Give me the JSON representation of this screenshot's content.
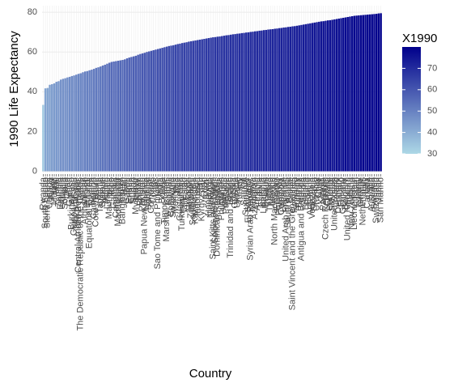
{
  "chart_data": {
    "type": "bar",
    "x_label": "Country",
    "y_label": "1990 Life Expectancy",
    "categories": [
      "Rwanda",
      "South Sudan",
      "Sierra Leone",
      "Uganda",
      "Niger",
      "Malawi",
      "Mali",
      "Zambia",
      "Ethiopia",
      "Angola",
      "Somalia",
      "Chad",
      "Guinea",
      "Burkina Faso",
      "Guinea-Bissau",
      "Mozambique",
      "Central African Republic",
      "The Democratic Republic of the Congo",
      "Liberia",
      "Afghanistan",
      "Burundi",
      "Equatorial Guinea",
      "Nigeria",
      "Cameroon",
      "Cote d'Ivoire",
      "Benin",
      "Tanzania",
      "Djibouti",
      "Yemen",
      "Lesotho",
      "Mauritania",
      "Togo",
      "Gambia",
      "Cambodia",
      "Madagascar",
      "Kenya",
      "Bangladesh",
      "Haiti",
      "Gabon",
      "Eritrea",
      "Ghana",
      "Sudan",
      "Myanmar",
      "Nepal",
      "Bhutan",
      "Pakistan",
      "Papua New Guinea",
      "Namibia",
      "Senegal",
      "Comoros",
      "Congo",
      "Laos",
      "Sao Tome and Principe",
      "India",
      "Bolivia",
      "Timor-Leste",
      "Marshall Islands",
      "Kiribati",
      "Botswana",
      "Swaziland",
      "Mongolia",
      "Iraq",
      "Guatemala",
      "Turkmenistan",
      "Tajikistan",
      "Egypt",
      "Morocco",
      "Zimbabwe",
      "South Africa",
      "Kazakhstan",
      "Indonesia",
      "Peru",
      "Kyrgyzstan",
      "Iran",
      "Brazil",
      "Honduras",
      "Nicaragua",
      "Saint Kitts and Nevis",
      "Solomon Islands",
      "Dominican Republic",
      "Algeria",
      "Philippines",
      "Vanuatu",
      "Palestine",
      "Belize",
      "Trinidad and Tobago",
      "Russia",
      "Guyana",
      "Ukraine",
      "Turkey",
      "Fiji",
      "Samoa",
      "Suriname",
      "El Salvador",
      "Syrian Arab Republic",
      "Moldova",
      "Azerbaijan",
      "Armenia",
      "Latvia",
      "Estonia",
      "Lithuania",
      "Belarus",
      "Tunisia",
      "Thailand",
      "Mexico",
      "North Macedonia",
      "Ecuador",
      "Paraguay",
      "Colombia",
      "Lebanon",
      "United Arab Emirates",
      "Saudi Arabia",
      "Brunei",
      "Saint Vincent and the Grenadines",
      "Romania",
      "Hungary",
      "Bahrain",
      "Antigua and Barbuda",
      "Serbia",
      "Bulgaria",
      "Poland",
      "Argentina",
      "Venezuela",
      "Slovakia",
      "Uruguay",
      "Chile",
      "Kuwait",
      "Panama",
      "Czech Republic",
      "Croatia",
      "Portugal",
      "Slovenia",
      "United States",
      "Ireland",
      "Denmark",
      "Finland",
      "Germany",
      "Belgium",
      "United Kingdom",
      "Austria",
      "New Zealand",
      "Liechtenstein",
      "Israel",
      "Norway",
      "Greece",
      "Netherlands",
      "Italy",
      "Canada",
      "Spain",
      "Australia",
      "Sweden",
      "Switzerland",
      "Japan",
      "San Marino"
    ],
    "values": [
      33.4,
      41.7,
      41.9,
      43.5,
      43.8,
      44.2,
      45.0,
      45.3,
      46.1,
      46.5,
      46.8,
      47.2,
      47.5,
      47.9,
      48.2,
      48.6,
      49.0,
      49.3,
      49.8,
      50.2,
      50.4,
      50.8,
      51.1,
      51.5,
      52.0,
      52.3,
      52.7,
      53.2,
      53.6,
      54.1,
      54.6,
      55.0,
      55.2,
      55.4,
      55.6,
      55.8,
      56.0,
      56.3,
      56.8,
      57.2,
      57.5,
      57.8,
      58.1,
      58.6,
      59.0,
      59.3,
      59.6,
      60.0,
      60.3,
      60.6,
      60.9,
      61.2,
      61.5,
      61.8,
      62.1,
      62.4,
      62.7,
      63.0,
      63.2,
      63.4,
      63.7,
      64.0,
      64.2,
      64.5,
      64.7,
      64.9,
      65.2,
      65.4,
      65.6,
      65.8,
      66.0,
      66.2,
      66.4,
      66.6,
      66.8,
      67.0,
      67.2,
      67.4,
      67.5,
      67.7,
      67.8,
      68.0,
      68.2,
      68.4,
      68.5,
      68.7,
      68.9,
      69.0,
      69.2,
      69.3,
      69.5,
      69.6,
      69.8,
      69.9,
      70.1,
      70.2,
      70.4,
      70.5,
      70.7,
      70.8,
      71.0,
      71.1,
      71.3,
      71.4,
      71.5,
      71.7,
      71.8,
      72.0,
      72.1,
      72.3,
      72.4,
      72.6,
      72.7,
      72.9,
      73.0,
      73.2,
      73.4,
      73.6,
      73.8,
      74.0,
      74.2,
      74.4,
      74.6,
      74.8,
      75.0,
      75.2,
      75.4,
      75.5,
      75.7,
      75.9,
      76.0,
      76.2,
      76.4,
      76.6,
      76.8,
      77.0,
      77.2,
      77.4,
      77.6,
      77.8,
      78.0,
      78.2,
      78.3,
      78.4,
      78.5,
      78.6,
      78.7,
      78.8,
      78.9,
      79.0,
      79.1,
      79.2,
      79.4,
      79.5
    ],
    "ylim": [
      -1,
      83.3
    ],
    "yticks": [
      0,
      20,
      40,
      60,
      80
    ],
    "grid": true,
    "colorbar": {
      "title": "X1990",
      "lim": [
        30,
        80
      ],
      "ticks": [
        30,
        40,
        50,
        60,
        70
      ],
      "low_color": "#add8e6",
      "high_color": "#00008b"
    }
  }
}
